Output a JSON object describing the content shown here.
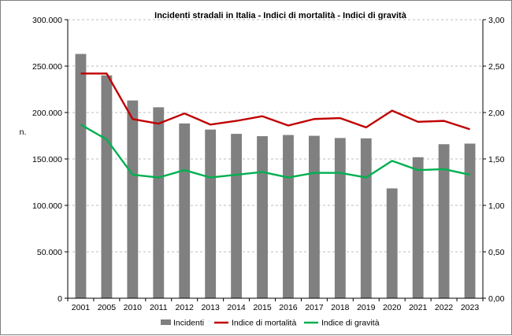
{
  "chart_data": {
    "type": "bar",
    "title": "Incidenti stradali in Italia - Indici di mortalità - Indici di gravità",
    "ylabel": "n.",
    "y2label": "",
    "categories": [
      "2001",
      "2005",
      "2010",
      "2011",
      "2012",
      "2013",
      "2014",
      "2015",
      "2016",
      "2017",
      "2018",
      "2019",
      "2020",
      "2021",
      "2022",
      "2023"
    ],
    "ylim": [
      0,
      300000
    ],
    "y2lim": [
      0,
      3
    ],
    "y_ticks": [
      "0",
      "50.000",
      "100.000",
      "150.000",
      "200.000",
      "250.000",
      "300.000"
    ],
    "y2_ticks": [
      "0,00",
      "0,50",
      "1,00",
      "1,50",
      "2,00",
      "2,50",
      "3,00"
    ],
    "grid": true,
    "legend_position": "bottom",
    "series": [
      {
        "name": "Incidenti",
        "kind": "bar",
        "axis": "left",
        "color": "#808080",
        "values": [
          263100,
          240011,
          212997,
          205638,
          188228,
          181660,
          177031,
          174539,
          175791,
          174933,
          172553,
          172183,
          118298,
          151875,
          165889,
          166525
        ]
      },
      {
        "name": "Indice di mortalità",
        "kind": "line",
        "axis": "right",
        "color": "#c00000",
        "values": [
          2.42,
          2.42,
          1.93,
          1.88,
          1.99,
          1.87,
          1.91,
          1.96,
          1.86,
          1.93,
          1.94,
          1.84,
          2.02,
          1.9,
          1.91,
          1.82
        ]
      },
      {
        "name": "Indice di gravità",
        "kind": "line",
        "axis": "right",
        "color": "#00b050",
        "values": [
          1.87,
          1.71,
          1.33,
          1.3,
          1.38,
          1.3,
          1.33,
          1.36,
          1.3,
          1.35,
          1.35,
          1.3,
          1.48,
          1.38,
          1.39,
          1.33
        ]
      }
    ]
  }
}
